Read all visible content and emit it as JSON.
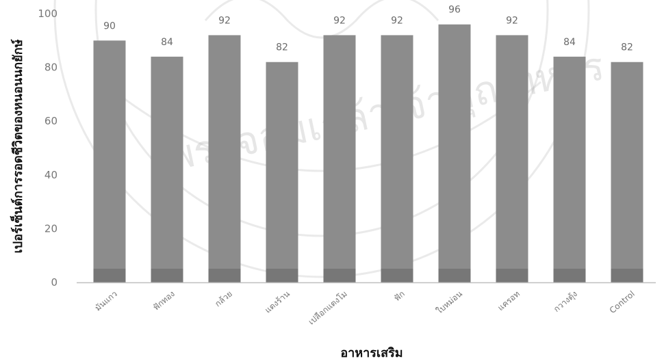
{
  "chart_data": {
    "type": "bar",
    "title": "",
    "xlabel": "อาหารเสริม",
    "ylabel": "เปอร์เซ็นต์การรอดชีวิตของหนอนนกยักษ์",
    "categories": [
      "มันแกว",
      "ฟักทอง",
      "กล้วย",
      "แตงร้าน",
      "เปลือกแตงโม",
      "ฟัก",
      "ใบหม่อน",
      "แครอท",
      "กวางตุ้ง",
      "Control"
    ],
    "values": [
      90,
      84,
      92,
      82,
      92,
      92,
      96,
      92,
      84,
      82
    ],
    "data_labels": [
      "90",
      "84",
      "92",
      "82",
      "92",
      "92",
      "96",
      "92",
      "84",
      "82"
    ],
    "yticks": [
      "0",
      "20",
      "40",
      "60",
      "80",
      "100"
    ],
    "ylim": [
      0,
      100
    ],
    "grid": false,
    "legend": "none",
    "colors": {
      "bar": "#8c8c8c",
      "bar_base": "#777777",
      "axis": "#bfbfbf"
    }
  }
}
